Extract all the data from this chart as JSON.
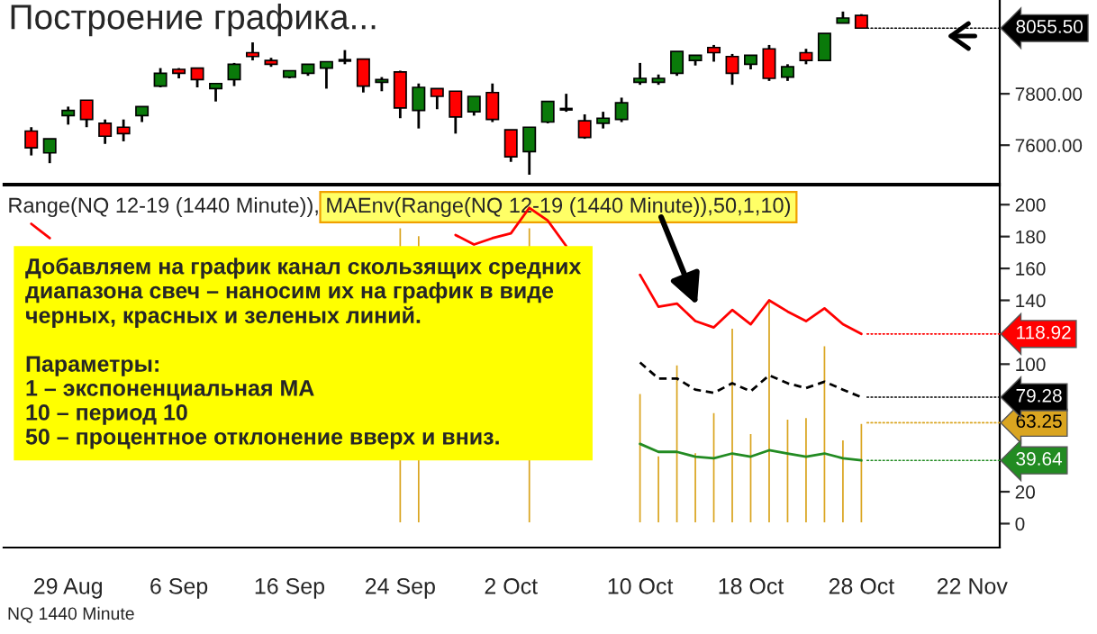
{
  "chart_data": [
    {
      "type": "candlestick",
      "title": "Построение графика...",
      "categories": [
        null,
        null,
        null,
        null,
        null,
        null,
        null,
        null,
        null,
        null,
        null,
        null,
        null,
        null,
        null,
        null,
        null,
        null,
        null,
        null,
        null,
        null,
        null,
        null,
        null,
        null,
        null,
        null,
        null,
        null,
        null,
        null,
        null,
        null,
        null,
        null,
        null,
        null,
        null,
        null,
        null,
        null,
        null,
        null,
        null,
        null,
        null,
        null,
        null,
        null,
        null,
        null,
        null
      ],
      "ohlc": [
        [
          7655,
          7670,
          7560,
          7590
        ],
        [
          7570,
          7625,
          7530,
          7625
        ],
        [
          7715,
          7750,
          7680,
          7735
        ],
        [
          7775,
          7775,
          7670,
          7700
        ],
        [
          7685,
          7700,
          7605,
          7635
        ],
        [
          7670,
          7700,
          7615,
          7645
        ],
        [
          7715,
          7750,
          7690,
          7750
        ],
        [
          7830,
          7900,
          7825,
          7880
        ],
        [
          7895,
          7900,
          7860,
          7880
        ],
        [
          7900,
          7900,
          7825,
          7855
        ],
        [
          7820,
          7840,
          7770,
          7840
        ],
        [
          7855,
          7920,
          7830,
          7915
        ],
        [
          7960,
          8000,
          7930,
          7945
        ],
        [
          7930,
          7940,
          7905,
          7915
        ],
        [
          7865,
          7890,
          7860,
          7890
        ],
        [
          7880,
          7915,
          7870,
          7915
        ],
        [
          7900,
          7925,
          7820,
          7925
        ],
        [
          7930,
          7970,
          7915,
          7930
        ],
        [
          7935,
          7935,
          7805,
          7830
        ],
        [
          7845,
          7865,
          7810,
          7855
        ],
        [
          7885,
          7890,
          7705,
          7745
        ],
        [
          7735,
          7840,
          7665,
          7825
        ],
        [
          7820,
          7820,
          7740,
          7790
        ],
        [
          7810,
          7810,
          7645,
          7710
        ],
        [
          7730,
          7790,
          7715,
          7790
        ],
        [
          7805,
          7840,
          7690,
          7700
        ],
        [
          7660,
          7660,
          7535,
          7555
        ],
        [
          7575,
          7670,
          7485,
          7670
        ],
        [
          7690,
          7770,
          7685,
          7770
        ],
        [
          7740,
          7800,
          7730,
          7740
        ],
        [
          7695,
          7720,
          7625,
          7630
        ],
        [
          7685,
          7730,
          7665,
          7705
        ],
        [
          7700,
          7785,
          7690,
          7765
        ],
        [
          7845,
          7920,
          7835,
          7860
        ],
        [
          7845,
          7875,
          7835,
          7860
        ],
        [
          7880,
          7965,
          7870,
          7965
        ],
        [
          7930,
          7950,
          7910,
          7950
        ],
        [
          7980,
          7990,
          7925,
          7960
        ],
        [
          7945,
          7955,
          7835,
          7880
        ],
        [
          7915,
          7950,
          7895,
          7950
        ],
        [
          7975,
          7990,
          7850,
          7860
        ],
        [
          7865,
          7915,
          7850,
          7905
        ],
        [
          7960,
          7975,
          7915,
          7930
        ],
        [
          7930,
          8035,
          7930,
          8035
        ],
        [
          8075,
          8120,
          8075,
          8095
        ],
        [
          8105,
          8110,
          8055.5,
          8055.5
        ],
        null,
        null,
        null,
        null,
        null,
        null,
        null
      ],
      "colors": [
        "#ff0000",
        "#0a7a0a",
        "#0a7a0a",
        "#ff0000",
        "#ff0000",
        "#ff0000",
        "#0a7a0a",
        "#0a7a0a",
        "#ff0000",
        "#ff0000",
        "#0a7a0a",
        "#0a7a0a",
        "#ff0000",
        "#ff0000",
        "#0a7a0a",
        "#0a7a0a",
        "#0a7a0a",
        "#000000",
        "#ff0000",
        "#0a7a0a",
        "#ff0000",
        "#0a7a0a",
        "#ff0000",
        "#ff0000",
        "#0a7a0a",
        "#ff0000",
        "#ff0000",
        "#0a7a0a",
        "#0a7a0a",
        "#000000",
        "#ff0000",
        "#0a7a0a",
        "#0a7a0a",
        "#0a7a0a",
        "#0a7a0a",
        "#0a7a0a",
        "#0a7a0a",
        "#ff0000",
        "#ff0000",
        "#0a7a0a",
        "#ff0000",
        "#0a7a0a",
        "#ff0000",
        "#0a7a0a",
        "#0a7a0a",
        "#ff0000",
        null,
        null,
        null,
        null,
        null,
        null,
        null
      ],
      "value_labels": [
        null,
        null,
        null,
        null,
        null,
        null,
        null,
        null,
        null,
        null,
        null,
        null,
        null,
        null,
        null,
        null,
        null,
        null,
        null,
        null,
        null,
        null,
        null,
        null,
        null,
        null,
        null,
        null,
        null,
        null,
        null,
        null,
        null,
        null,
        null,
        null,
        null,
        null,
        null,
        null,
        null,
        null,
        null,
        null,
        null,
        "8055.50",
        null,
        null,
        null,
        null,
        null,
        null,
        null
      ],
      "ylim": [
        7450,
        8165
      ],
      "yticks": [
        {
          "value": 7600,
          "label": "7600.00"
        },
        {
          "value": 7800,
          "label": "7800.00"
        }
      ],
      "tick_labels": "y"
    },
    {
      "type": "bar",
      "categories": [
        null,
        null,
        "29 Aug",
        null,
        null,
        null,
        null,
        null,
        "6 Sep",
        null,
        null,
        null,
        null,
        null,
        "16 Sep",
        null,
        null,
        null,
        null,
        null,
        "24 Sep",
        null,
        null,
        null,
        null,
        null,
        "2 Oct",
        null,
        null,
        null,
        null,
        null,
        null,
        "10 Oct",
        null,
        null,
        null,
        null,
        null,
        "18 Oct",
        null,
        null,
        null,
        null,
        null,
        "28 Oct",
        null,
        null,
        null,
        null,
        null,
        "22 Nov",
        null
      ],
      "series": [
        {
          "type": "bar",
          "color": "#daa520",
          "values": [
            null,
            null,
            null,
            null,
            null,
            null,
            null,
            null,
            null,
            null,
            null,
            null,
            null,
            null,
            null,
            null,
            null,
            null,
            null,
            null,
            186,
            181,
            null,
            null,
            null,
            null,
            null,
            186,
            null,
            null,
            null,
            null,
            null,
            82,
            43,
            100,
            45,
            70,
            123,
            57,
            140,
            66,
            67,
            112,
            53,
            63.25,
            null,
            null,
            null,
            null,
            null,
            null,
            null
          ],
          "value_labels": [
            null,
            null,
            null,
            null,
            null,
            null,
            null,
            null,
            null,
            null,
            null,
            null,
            null,
            null,
            null,
            null,
            null,
            null,
            null,
            null,
            null,
            null,
            null,
            null,
            null,
            null,
            null,
            null,
            null,
            null,
            null,
            null,
            null,
            null,
            null,
            null,
            null,
            null,
            null,
            null,
            null,
            null,
            null,
            null,
            null,
            "63.25",
            null,
            null,
            null,
            null,
            null,
            null,
            null
          ]
        },
        {
          "type": "line",
          "color": "#ff0000",
          "line_style": "solid",
          "values": [
            188,
            179,
            null,
            null,
            null,
            null,
            null,
            null,
            null,
            null,
            null,
            null,
            null,
            null,
            null,
            null,
            null,
            null,
            null,
            null,
            null,
            null,
            null,
            181,
            175,
            179,
            182,
            198,
            190,
            174,
            null,
            null,
            null,
            156,
            136,
            138,
            127,
            123,
            134,
            125,
            140,
            133,
            127,
            135,
            125,
            118.92,
            null,
            null,
            null,
            null,
            null,
            null,
            null
          ],
          "value_labels": [
            null,
            null,
            null,
            null,
            null,
            null,
            null,
            null,
            null,
            null,
            null,
            null,
            null,
            null,
            null,
            null,
            null,
            null,
            null,
            null,
            null,
            null,
            null,
            null,
            null,
            null,
            null,
            null,
            null,
            null,
            null,
            null,
            null,
            null,
            null,
            null,
            null,
            null,
            null,
            null,
            null,
            null,
            null,
            null,
            null,
            "118.92",
            null,
            null,
            null,
            null,
            null,
            null,
            null
          ]
        },
        {
          "type": "line",
          "color": "#000000",
          "line_style": "dashed",
          "values": [
            null,
            null,
            null,
            null,
            null,
            null,
            null,
            null,
            null,
            null,
            null,
            null,
            null,
            null,
            null,
            null,
            null,
            null,
            null,
            null,
            null,
            null,
            null,
            null,
            null,
            null,
            null,
            null,
            null,
            null,
            null,
            null,
            null,
            101,
            91,
            91,
            84,
            82,
            88,
            83,
            93,
            88,
            85,
            89,
            84,
            79.28,
            null,
            null,
            null,
            null,
            null,
            null,
            null
          ],
          "value_labels": [
            null,
            null,
            null,
            null,
            null,
            null,
            null,
            null,
            null,
            null,
            null,
            null,
            null,
            null,
            null,
            null,
            null,
            null,
            null,
            null,
            null,
            null,
            null,
            null,
            null,
            null,
            null,
            null,
            null,
            null,
            null,
            null,
            null,
            null,
            null,
            null,
            null,
            null,
            null,
            null,
            null,
            null,
            null,
            null,
            null,
            "79.28",
            null,
            null,
            null,
            null,
            null,
            null,
            null
          ]
        },
        {
          "type": "line",
          "color": "#228b22",
          "line_style": "solid",
          "values": [
            null,
            null,
            null,
            null,
            null,
            null,
            null,
            null,
            null,
            null,
            null,
            null,
            null,
            null,
            null,
            null,
            null,
            null,
            null,
            null,
            null,
            null,
            null,
            null,
            null,
            null,
            null,
            null,
            null,
            null,
            null,
            null,
            null,
            50,
            45,
            45,
            42,
            41,
            44,
            42,
            46,
            44,
            42,
            44,
            41,
            39.64,
            null,
            null,
            null,
            null,
            null,
            null,
            null
          ],
          "value_labels": [
            null,
            null,
            null,
            null,
            null,
            null,
            null,
            null,
            null,
            null,
            null,
            null,
            null,
            null,
            null,
            null,
            null,
            null,
            null,
            null,
            null,
            null,
            null,
            null,
            null,
            null,
            null,
            null,
            null,
            null,
            null,
            null,
            null,
            null,
            null,
            null,
            null,
            null,
            null,
            null,
            null,
            null,
            null,
            null,
            null,
            "39.64",
            null,
            null,
            null,
            null,
            null,
            null,
            null
          ]
        }
      ],
      "ylim": [
        -15,
        212
      ],
      "yticks": [
        0,
        20,
        100,
        140,
        160,
        180,
        200
      ],
      "annotations": [
        "Range(NQ 12-19 (1440 Minute)), ",
        "MAEnv(Range(NQ 12-19 (1440 Minute)),50,1,10)",
        "Добавляем на график канал скользящих средних\nдиапазона свеч – наносим их на график в виде\nчерных, красных и зеленых линий.\n\nПараметры:\n1 – экспоненциальная МА\n10 – период 10\n50 – процентное отклонение вверх и вниз.",
        "NQ 1440 Minute"
      ]
    }
  ]
}
